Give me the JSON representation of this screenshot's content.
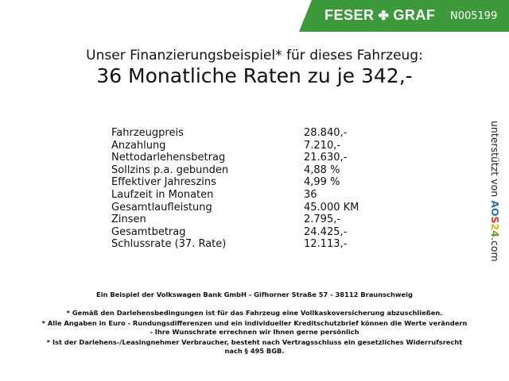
{
  "header": {
    "brand_left": "FESER",
    "brand_right": "GRAF",
    "code": "N005199",
    "brand_color": "#3d9a3a"
  },
  "title": {
    "line1": "Unser Finanzierungsbeispiel* für dieses Fahrzeug:",
    "line2": "36 Monatliche Raten zu je 342,-"
  },
  "rows": [
    {
      "label": "Fahrzeugpreis",
      "value": "28.840,-"
    },
    {
      "label": "Anzahlung",
      "value": "7.210,-"
    },
    {
      "label": "Nettodarlehensbetrag",
      "value": "21.630,-"
    },
    {
      "label": "Sollzins p.a. gebunden",
      "value": "4,88 %"
    },
    {
      "label": "Effektiver Jahreszins",
      "value": "4,99 %"
    },
    {
      "label": "Laufzeit in Monaten",
      "value": "36"
    },
    {
      "label": "Gesamtlaufleistung",
      "value": "45.000 KM"
    },
    {
      "label": "Zinsen",
      "value": "2.795,-"
    },
    {
      "label": "Gesamtbetrag",
      "value": "24.425,-"
    },
    {
      "label": "Schlussrate (37. Rate)",
      "value": "12.113,-"
    }
  ],
  "side": {
    "text": "unterstützt von",
    "logo": "AOS24",
    "suffix": ".com"
  },
  "footer": {
    "bank": "Ein Beispiel der Volkswagen Bank GmbH - Gifhorner Straße 57 - 38112 Braunschweig",
    "note1": "* Gemäß den Darlehensbedingungen ist für das Fahrzeug eine Vollkaskoversicherung abzuschließen.",
    "note2a": "* Alle Angaben in Euro - Rundungsdifferenzen und ein individueller Kreditschutzbrief können die Werte verändern",
    "note2b": "- Ihre Wunschrate errechnen wir Ihnen gerne persönlich",
    "note3a": "* Ist der Darlehens-/Leasingnehmer Verbraucher, besteht nach Vertragsschluss ein gesetzliches Widerrufsrecht",
    "note3b": "nach § 495 BGB."
  }
}
